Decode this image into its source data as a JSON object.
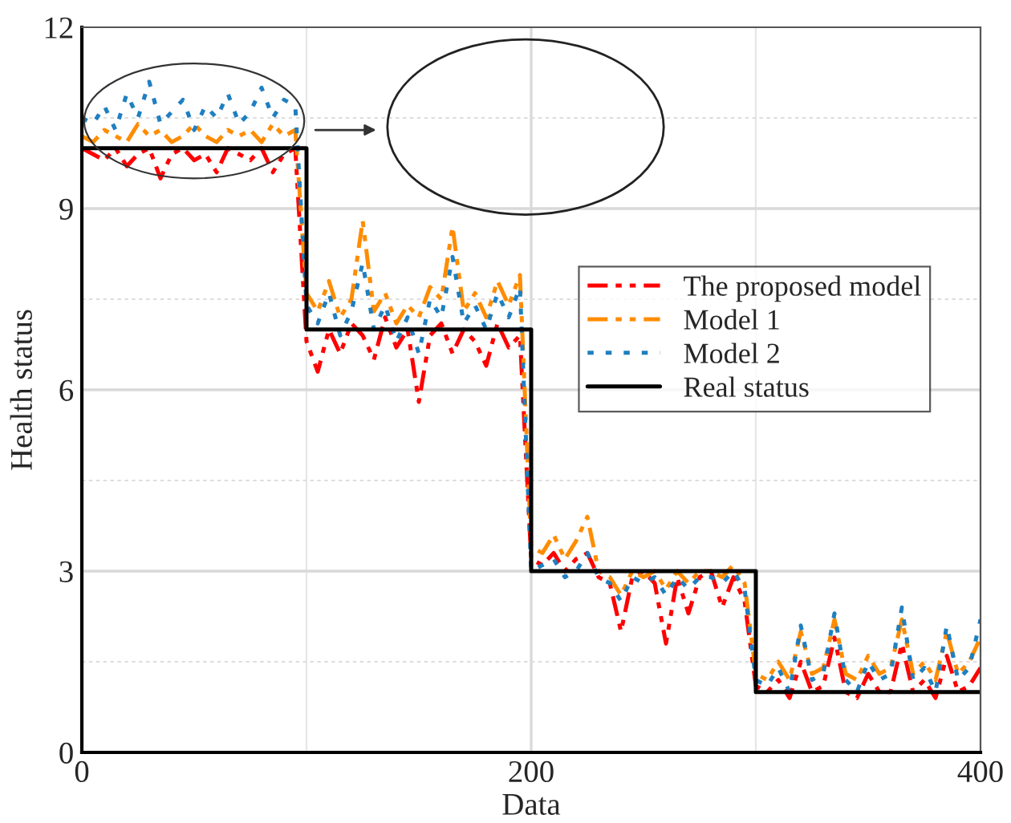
{
  "chart_data": {
    "type": "line",
    "xlabel": "Data",
    "ylabel": "Health status",
    "x": [
      0,
      5,
      10,
      15,
      20,
      25,
      30,
      35,
      40,
      45,
      50,
      55,
      60,
      65,
      70,
      75,
      80,
      85,
      90,
      95,
      100,
      105,
      110,
      115,
      120,
      125,
      130,
      135,
      140,
      145,
      150,
      155,
      160,
      165,
      170,
      175,
      180,
      185,
      190,
      195,
      200,
      205,
      210,
      215,
      220,
      225,
      230,
      235,
      240,
      245,
      250,
      255,
      260,
      265,
      270,
      275,
      280,
      285,
      290,
      295,
      300,
      305,
      310,
      315,
      320,
      325,
      330,
      335,
      340,
      345,
      350,
      355,
      360,
      365,
      370,
      375,
      380,
      385,
      390,
      395,
      400
    ],
    "series": [
      {
        "name": "The proposed model",
        "color": "#ff0000",
        "line_style": "dashdot",
        "values": [
          10.0,
          9.9,
          9.8,
          10.0,
          9.7,
          9.9,
          10.0,
          9.5,
          9.9,
          10.0,
          9.8,
          9.9,
          9.6,
          10.0,
          9.9,
          9.8,
          10.0,
          9.6,
          9.9,
          10.0,
          6.8,
          6.3,
          7.0,
          6.6,
          7.1,
          6.9,
          6.5,
          7.2,
          6.7,
          7.0,
          5.8,
          6.9,
          7.1,
          6.6,
          7.0,
          6.8,
          6.4,
          7.1,
          6.7,
          6.9,
          3.2,
          3.1,
          3.3,
          3.0,
          3.2,
          3.3,
          2.9,
          2.8,
          2.0,
          2.9,
          3.0,
          2.8,
          1.8,
          2.9,
          2.3,
          2.9,
          3.0,
          2.4,
          2.9,
          2.5,
          1.1,
          1.0,
          1.2,
          0.9,
          1.5,
          1.0,
          1.1,
          1.9,
          1.0,
          0.9,
          1.3,
          1.0,
          1.0,
          1.8,
          1.0,
          1.2,
          0.9,
          1.6,
          1.0,
          1.1,
          1.4
        ]
      },
      {
        "name": "Model 1",
        "color": "#ff8c00",
        "line_style": "dashdot",
        "values": [
          10.2,
          10.1,
          10.3,
          10.2,
          10.1,
          10.4,
          10.2,
          10.3,
          10.1,
          10.2,
          10.4,
          10.2,
          10.1,
          10.3,
          10.2,
          10.3,
          10.1,
          10.4,
          10.2,
          10.3,
          7.6,
          7.3,
          7.8,
          7.2,
          7.5,
          8.8,
          7.3,
          7.6,
          7.1,
          7.4,
          7.2,
          7.7,
          7.5,
          8.7,
          7.3,
          7.6,
          7.2,
          7.8,
          7.4,
          7.9,
          3.4,
          3.3,
          3.6,
          3.2,
          3.5,
          3.9,
          3.0,
          2.9,
          2.6,
          3.0,
          2.9,
          3.0,
          2.7,
          3.0,
          2.8,
          3.0,
          3.0,
          2.9,
          3.1,
          2.8,
          1.3,
          1.2,
          1.5,
          1.2,
          2.0,
          1.3,
          1.4,
          2.2,
          1.3,
          1.2,
          1.6,
          1.3,
          1.4,
          2.2,
          1.3,
          1.5,
          1.2,
          2.0,
          1.3,
          1.5,
          1.9
        ]
      },
      {
        "name": "Model 2",
        "color": "#1f7fc0",
        "line_style": "dotted",
        "values": [
          10.5,
          10.4,
          10.7,
          10.3,
          10.9,
          10.5,
          11.1,
          10.4,
          10.6,
          10.8,
          10.3,
          10.7,
          10.5,
          10.9,
          10.4,
          10.6,
          11.0,
          10.5,
          10.8,
          10.7,
          7.4,
          7.1,
          7.6,
          6.9,
          7.3,
          8.1,
          7.0,
          7.4,
          6.8,
          7.2,
          6.6,
          7.5,
          7.2,
          8.2,
          7.1,
          7.4,
          7.0,
          7.6,
          7.2,
          7.7,
          3.0,
          3.1,
          3.2,
          2.9,
          3.0,
          3.3,
          2.9,
          2.8,
          2.5,
          2.9,
          2.8,
          2.9,
          2.6,
          2.9,
          2.7,
          2.9,
          2.9,
          2.8,
          3.0,
          2.7,
          1.2,
          1.1,
          1.4,
          1.0,
          2.1,
          1.2,
          1.3,
          2.3,
          1.2,
          1.0,
          1.5,
          1.2,
          1.3,
          2.4,
          1.2,
          1.4,
          1.0,
          2.1,
          1.2,
          1.4,
          2.2
        ]
      },
      {
        "name": "Real status",
        "type": "step",
        "color": "#000000",
        "line_style": "solid",
        "x": [
          0,
          100,
          200,
          300,
          400
        ],
        "values": [
          10,
          7,
          3,
          1,
          1
        ]
      }
    ],
    "xlim": [
      0,
      400
    ],
    "ylim": [
      0,
      12
    ],
    "xticks": [
      0,
      {
        "value": 100,
        "label": null
      },
      200,
      {
        "value": 300,
        "label": null
      },
      400
    ],
    "yticks": [
      0,
      {
        "value": 1.5,
        "label": null
      },
      3,
      {
        "value": 4.5,
        "label": null
      },
      6,
      {
        "value": 7.5,
        "label": null
      },
      9,
      {
        "value": 10.5,
        "label": null
      },
      12
    ],
    "grid": true,
    "legend": "right"
  }
}
